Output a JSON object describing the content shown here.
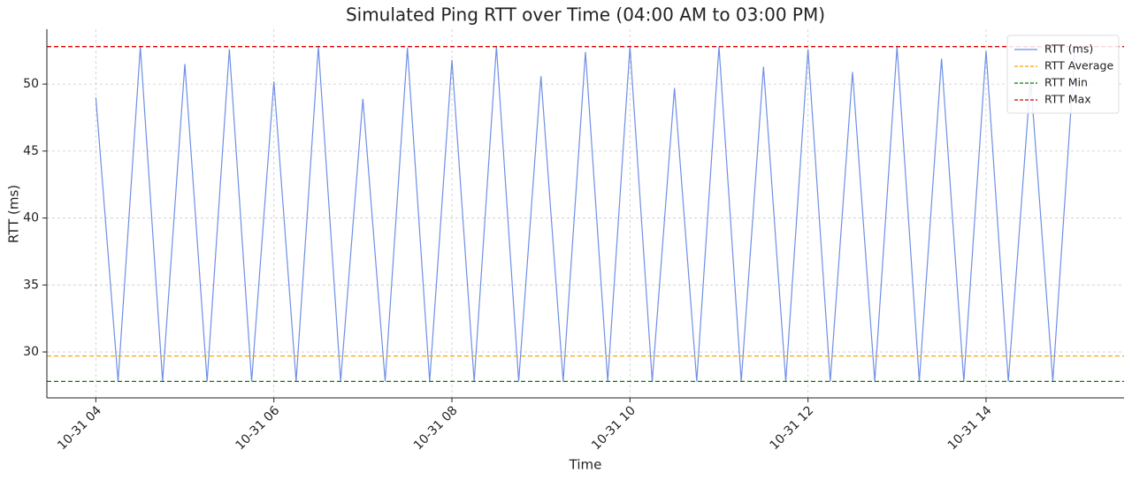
{
  "chart_data": {
    "type": "line",
    "title": "Simulated Ping RTT over Time (04:00 AM to 03:00 PM)",
    "xlabel": "Time",
    "ylabel": "RTT (ms)",
    "x": [
      4,
      4.25,
      4.5,
      4.75,
      5,
      5.25,
      5.5,
      5.75,
      6,
      6.25,
      6.5,
      6.75,
      7,
      7.25,
      7.5,
      7.75,
      8,
      8.25,
      8.5,
      8.75,
      9,
      9.25,
      9.5,
      9.75,
      10,
      10.25,
      10.5,
      10.75,
      11,
      11.25,
      11.5,
      11.75,
      12,
      12.25,
      12.5,
      12.75,
      13,
      13.25,
      13.5,
      13.75,
      14,
      14.25,
      14.5,
      14.75,
      15
    ],
    "series": [
      {
        "name": "RTT (ms)",
        "color": "#6f8fe6",
        "values": [
          49.0,
          27.8,
          52.8,
          27.8,
          51.5,
          27.8,
          52.6,
          27.8,
          50.2,
          27.8,
          52.8,
          27.8,
          48.9,
          27.8,
          52.7,
          27.8,
          51.8,
          27.8,
          52.8,
          27.8,
          50.6,
          27.8,
          52.4,
          27.8,
          52.8,
          27.8,
          49.7,
          27.8,
          52.8,
          27.8,
          51.3,
          27.8,
          52.6,
          27.8,
          50.9,
          27.8,
          52.8,
          27.8,
          51.9,
          27.8,
          52.5,
          27.8,
          50.4,
          27.8,
          52.8
        ]
      }
    ],
    "hlines": [
      {
        "name": "RTT Average",
        "color": "#ffa500",
        "value": 29.7
      },
      {
        "name": "RTT Min",
        "color": "#008000",
        "value": 27.8
      },
      {
        "name": "RTT Max",
        "color": "#e00000",
        "value": 52.8
      }
    ],
    "xlim": [
      3.45,
      15.55
    ],
    "ylim": [
      26.57,
      54.1
    ],
    "xticks": [
      {
        "value": 4,
        "label": "10-31 04"
      },
      {
        "value": 6,
        "label": "10-31 06"
      },
      {
        "value": 8,
        "label": "10-31 08"
      },
      {
        "value": 10,
        "label": "10-31 10"
      },
      {
        "value": 12,
        "label": "10-31 12"
      },
      {
        "value": 14,
        "label": "10-31 14"
      }
    ],
    "yticks": [
      30,
      35,
      40,
      45,
      50
    ],
    "grid": true,
    "legend": "upper right"
  }
}
